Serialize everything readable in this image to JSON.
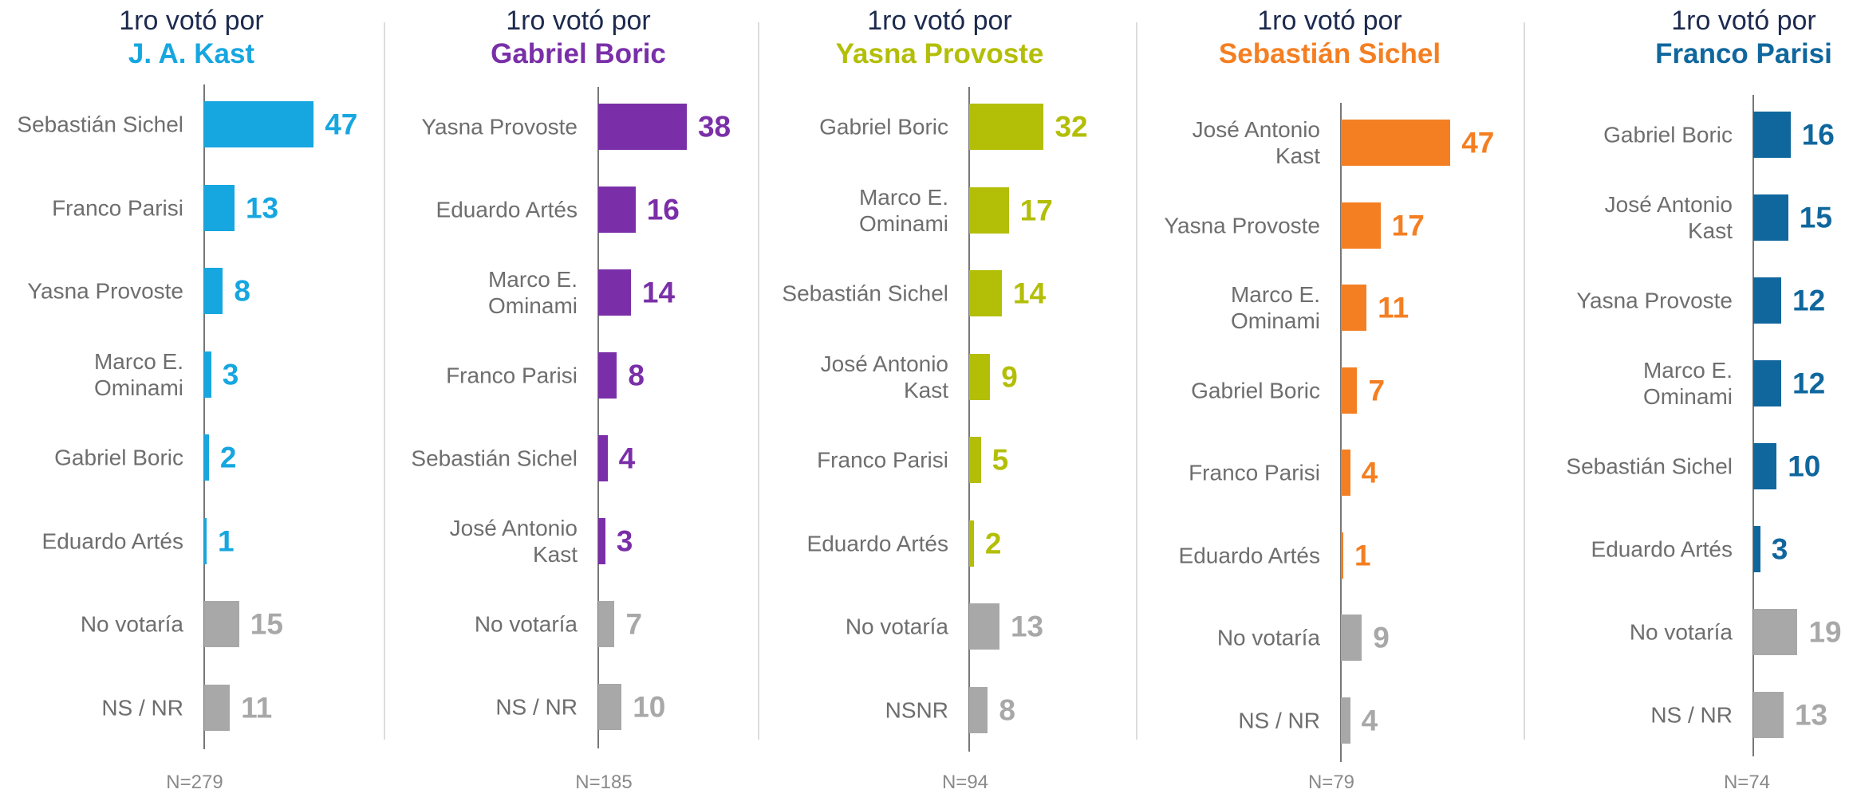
{
  "chart_data": [
    {
      "type": "bar",
      "title_prefix": "1ro votó por",
      "title_name": "J. A. Kast",
      "color": "#16a6e0",
      "categories": [
        "Sebastián Sichel",
        "Franco Parisi",
        "Yasna Provoste",
        "Marco E.\nOminami",
        "Gabriel Boric",
        "Eduardo Artés",
        "No votaría",
        "NS / NR"
      ],
      "values": [
        47,
        13,
        8,
        3,
        2,
        1,
        15,
        11
      ],
      "bar_colors": [
        "#16a6e0",
        "#16a6e0",
        "#16a6e0",
        "#16a6e0",
        "#16a6e0",
        "#16a6e0",
        "#a8a8a8",
        "#a8a8a8"
      ],
      "n_label": "N=279"
    },
    {
      "type": "bar",
      "title_prefix": "1ro votó por",
      "title_name": "Gabriel Boric",
      "color": "#7a2fa8",
      "categories": [
        "Yasna Provoste",
        "Eduardo Artés",
        "Marco E.\nOminami",
        "Franco Parisi",
        "Sebastián Sichel",
        "José Antonio\nKast",
        "No votaría",
        "NS / NR"
      ],
      "values": [
        38,
        16,
        14,
        8,
        4,
        3,
        7,
        10
      ],
      "bar_colors": [
        "#7a2fa8",
        "#7a2fa8",
        "#7a2fa8",
        "#7a2fa8",
        "#7a2fa8",
        "#7a2fa8",
        "#a8a8a8",
        "#a8a8a8"
      ],
      "n_label": "N=185"
    },
    {
      "type": "bar",
      "title_prefix": "1ro votó por",
      "title_name": "Yasna Provoste",
      "color": "#b3be07",
      "categories": [
        "Gabriel Boric",
        "Marco E.\nOminami",
        "Sebastián Sichel",
        "José Antonio\nKast",
        "Franco Parisi",
        "Eduardo Artés",
        "No votaría",
        "NSNR"
      ],
      "values": [
        32,
        17,
        14,
        9,
        5,
        2,
        13,
        8
      ],
      "bar_colors": [
        "#b3be07",
        "#b3be07",
        "#b3be07",
        "#b3be07",
        "#b3be07",
        "#b3be07",
        "#a8a8a8",
        "#a8a8a8"
      ],
      "n_label": "N=94"
    },
    {
      "type": "bar",
      "title_prefix": "1ro votó por",
      "title_name": "Sebastián Sichel",
      "color": "#f47f22",
      "categories": [
        "José Antonio\nKast",
        "Yasna Provoste",
        "Marco E.\nOminami",
        "Gabriel Boric",
        "Franco Parisi",
        "Eduardo Artés",
        "No votaría",
        "NS / NR"
      ],
      "values": [
        47,
        17,
        11,
        7,
        4,
        1,
        9,
        4
      ],
      "bar_colors": [
        "#f47f22",
        "#f47f22",
        "#f47f22",
        "#f47f22",
        "#f47f22",
        "#f47f22",
        "#a8a8a8",
        "#a8a8a8"
      ],
      "n_label": "N=79"
    },
    {
      "type": "bar",
      "title_prefix": "1ro votó por",
      "title_name": "Franco Parisi",
      "color": "#0f679d",
      "categories": [
        "Gabriel Boric",
        "José Antonio\nKast",
        "Yasna Provoste",
        "Marco E.\nOminami",
        "Sebastián Sichel",
        "Eduardo Artés",
        "No votaría",
        "NS / NR"
      ],
      "values": [
        16,
        15,
        12,
        12,
        10,
        3,
        19,
        13
      ],
      "bar_colors": [
        "#0f679d",
        "#0f679d",
        "#0f679d",
        "#0f679d",
        "#0f679d",
        "#0f679d",
        "#a8a8a8",
        "#a8a8a8"
      ],
      "n_label": "N=74"
    }
  ]
}
